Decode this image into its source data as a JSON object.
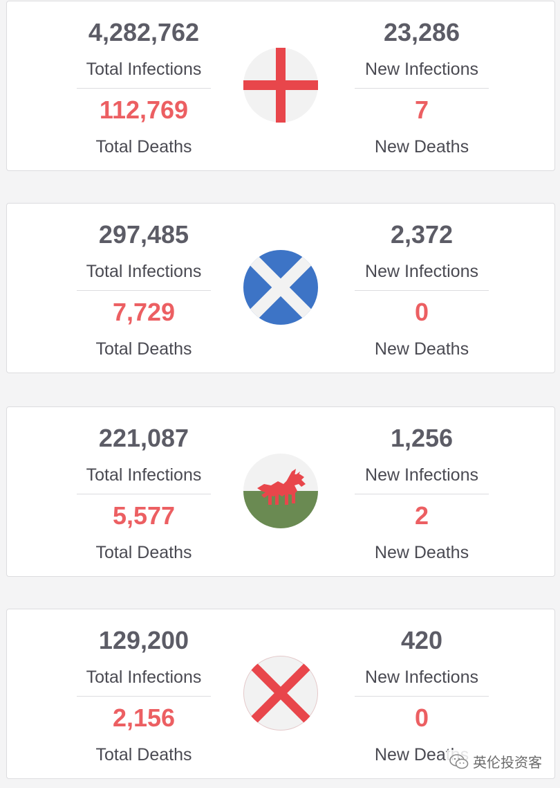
{
  "regions": [
    {
      "flag_icon": "england-flag-icon",
      "total_infections": "4,282,762",
      "total_infections_label": "Total Infections",
      "total_deaths": "112,769",
      "total_deaths_label": "Total Deaths",
      "new_infections": "23,286",
      "new_infections_label": "New Infections",
      "new_deaths": "7",
      "new_deaths_label": "New Deaths"
    },
    {
      "flag_icon": "scotland-flag-icon",
      "total_infections": "297,485",
      "total_infections_label": "Total Infections",
      "total_deaths": "7,729",
      "total_deaths_label": "Total Deaths",
      "new_infections": "2,372",
      "new_infections_label": "New Infections",
      "new_deaths": "0",
      "new_deaths_label": "New Deaths"
    },
    {
      "flag_icon": "wales-flag-icon",
      "total_infections": "221,087",
      "total_infections_label": "Total Infections",
      "total_deaths": "5,577",
      "total_deaths_label": "Total Deaths",
      "new_infections": "1,256",
      "new_infections_label": "New Infections",
      "new_deaths": "2",
      "new_deaths_label": "New Deaths"
    },
    {
      "flag_icon": "northern-ireland-saltire-icon",
      "total_infections": "129,200",
      "total_infections_label": "Total Infections",
      "total_deaths": "2,156",
      "total_deaths_label": "Total Deaths",
      "new_infections": "420",
      "new_infections_label": "New Infections",
      "new_deaths": "0",
      "new_deaths_label": "New Deaths"
    }
  ],
  "colors": {
    "number": "#5c5c66",
    "death_number": "#ec5f62",
    "flag_red": "#e8464b",
    "flag_blue": "#3d74c6",
    "flag_green": "#6a8a52",
    "flag_white": "#f2f2f2"
  },
  "watermark": {
    "icon": "wechat-icon",
    "text": "英伦投资客"
  }
}
